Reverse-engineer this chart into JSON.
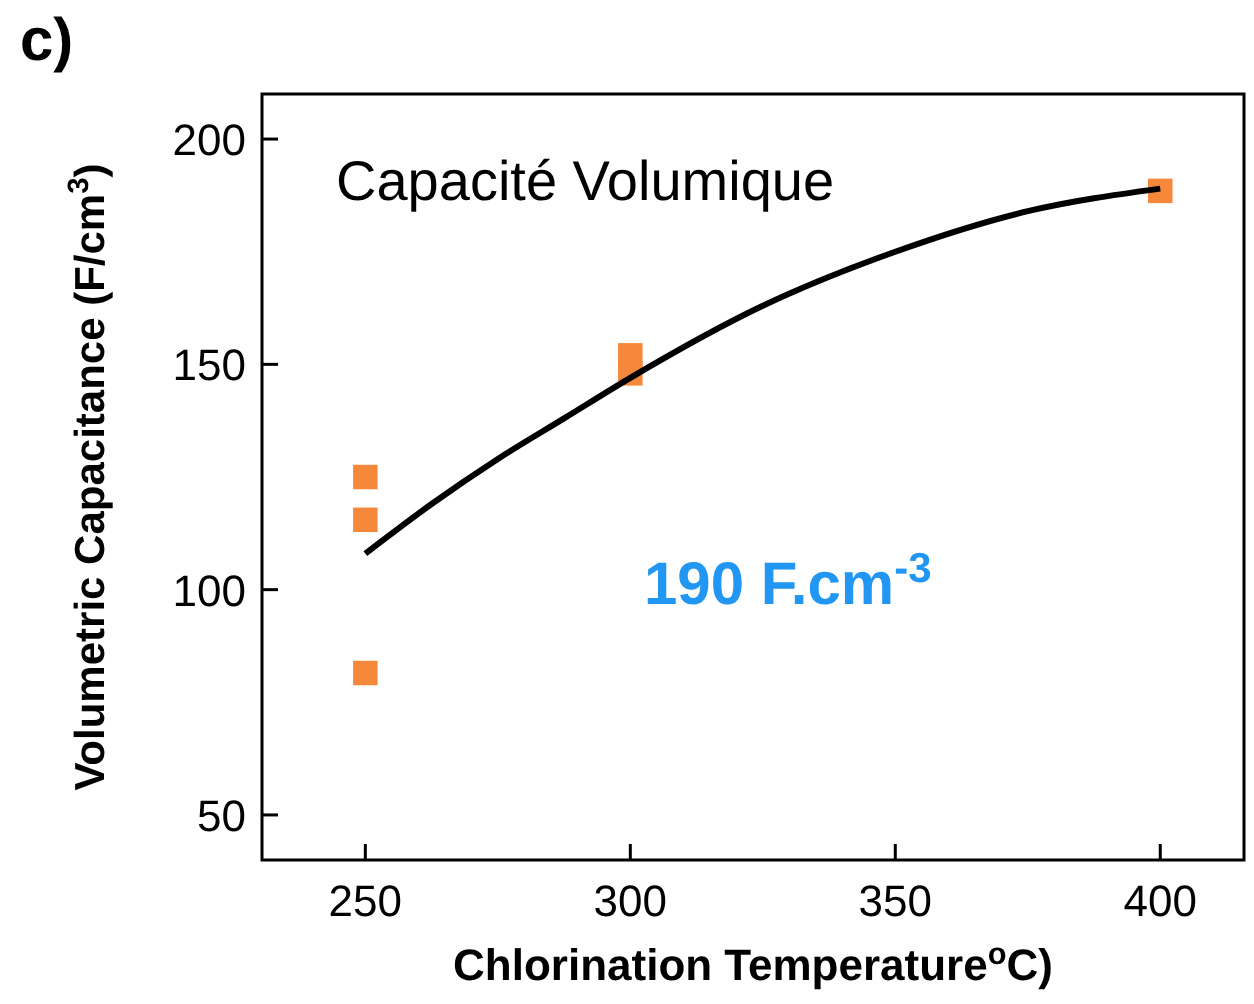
{
  "chart_data": {
    "type": "scatter",
    "xlabel": "Chlorination Temperature$^{o}$C)",
    "ylabel": "Volumetric Capacitance (F/cm$^{3}$)",
    "annotations": [
      "c)",
      "Capacité Volumique",
      "190 F.cm$^{-3}$"
    ],
    "xlim": [
      230.5,
      415.8
    ],
    "ylim": [
      40,
      210
    ],
    "xticks": [
      250,
      300,
      350,
      400
    ],
    "yticks": [
      50,
      100,
      150,
      200
    ],
    "grid": false,
    "series": [
      {
        "color": "#f5883a",
        "marker": "square",
        "x": [
          250,
          250,
          250,
          300,
          300,
          400
        ],
        "values": [
          125,
          115.5,
          81.5,
          152,
          148,
          188.5
        ]
      },
      {
        "type": "line",
        "color": "#000000",
        "line_style": "solid",
        "x": [
          250,
          262.5,
          275,
          287.5,
          300,
          325,
          350,
          375,
          400
        ],
        "values": [
          108,
          119,
          129,
          138,
          147,
          163,
          175,
          184,
          189
        ]
      }
    ]
  }
}
